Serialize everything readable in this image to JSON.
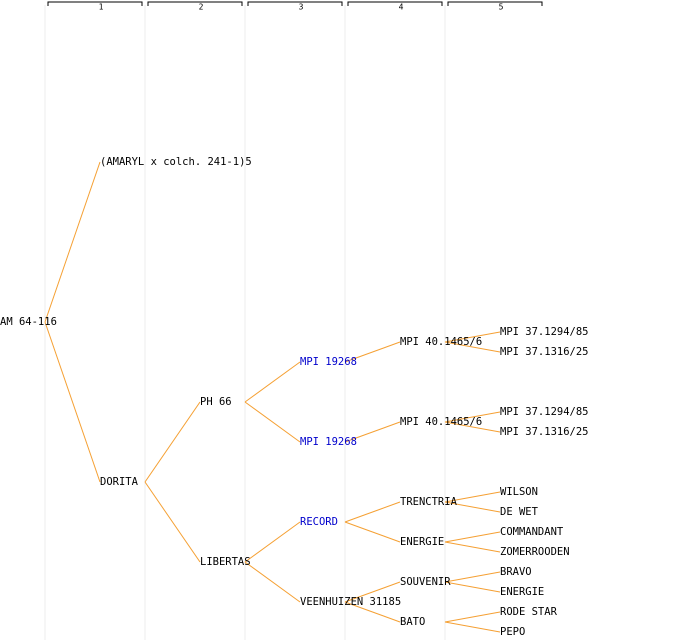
{
  "columns": [
    "1",
    "2",
    "3",
    "4",
    "5"
  ],
  "tree": {
    "label": "AM 64-116",
    "parents": [
      {
        "label": "(AMARYL x colch. 241-1)5"
      },
      {
        "label": "DORITA",
        "parents": [
          {
            "label": "PH 66",
            "parents": [
              {
                "label": "MPI 19268",
                "color": "#0000cc",
                "parents": [
                  {
                    "label": "MPI 40.1465/6",
                    "parents": [
                      {
                        "label": "MPI 37.1294/85"
                      },
                      {
                        "label": "MPI 37.1316/25"
                      }
                    ]
                  }
                ]
              },
              {
                "label": "MPI 19268",
                "color": "#0000cc",
                "parents": [
                  {
                    "label": "MPI 40.1465/6",
                    "parents": [
                      {
                        "label": "MPI 37.1294/85"
                      },
                      {
                        "label": "MPI 37.1316/25"
                      }
                    ]
                  }
                ]
              }
            ]
          },
          {
            "label": "LIBERTAS",
            "parents": [
              {
                "label": "RECORD",
                "color": "#0000cc",
                "parents": [
                  {
                    "label": "TRENCTRIA",
                    "parents": [
                      {
                        "label": "WILSON"
                      },
                      {
                        "label": "DE WET"
                      }
                    ]
                  },
                  {
                    "label": "ENERGIE",
                    "parents": [
                      {
                        "label": "COMMANDANT"
                      },
                      {
                        "label": "ZOMERROODEN"
                      }
                    ]
                  }
                ]
              },
              {
                "label": "VEENHUIZEN 31185",
                "parents": [
                  {
                    "label": "SOUVENIR",
                    "parents": [
                      {
                        "label": "BRAVO"
                      },
                      {
                        "label": "ENERGIE"
                      }
                    ]
                  },
                  {
                    "label": "BATO",
                    "parents": [
                      {
                        "label": "RODE STAR"
                      },
                      {
                        "label": "PEPO"
                      }
                    ]
                  }
                ]
              }
            ]
          }
        ]
      }
    ]
  }
}
